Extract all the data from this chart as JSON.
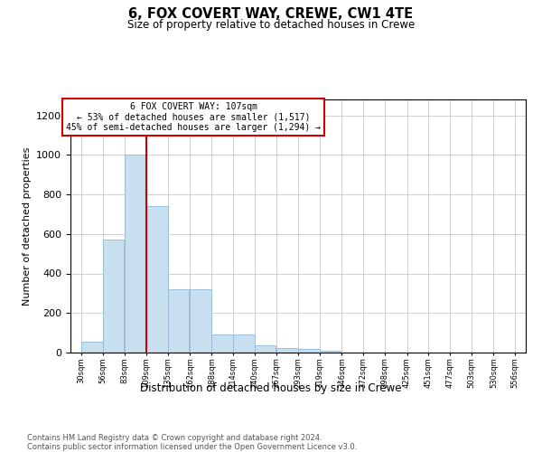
{
  "title": "6, FOX COVERT WAY, CREWE, CW1 4TE",
  "subtitle": "Size of property relative to detached houses in Crewe",
  "xlabel": "Distribution of detached houses by size in Crewe",
  "ylabel": "Number of detached properties",
  "bar_color": "#c8dff0",
  "bar_edge_color": "#90b8d8",
  "vline_color": "#cc0000",
  "annot_box_color": "#cc0000",
  "annot_line1": "6 FOX COVERT WAY: 107sqm",
  "annot_line2": "← 53% of detached houses are smaller (1,517)",
  "annot_line3": "45% of semi-detached houses are larger (1,294) →",
  "bins": [
    30,
    56,
    83,
    109,
    135,
    162,
    188,
    214,
    240,
    267,
    293,
    319,
    346,
    372,
    398,
    425,
    451,
    477,
    503,
    530,
    556
  ],
  "bin_labels": [
    "30sqm",
    "56sqm",
    "83sqm",
    "109sqm",
    "135sqm",
    "162sqm",
    "188sqm",
    "214sqm",
    "240sqm",
    "267sqm",
    "293sqm",
    "319sqm",
    "346sqm",
    "372sqm",
    "398sqm",
    "425sqm",
    "451sqm",
    "477sqm",
    "503sqm",
    "530sqm",
    "556sqm"
  ],
  "counts": [
    57,
    570,
    1000,
    740,
    320,
    320,
    90,
    90,
    38,
    22,
    18,
    10,
    0,
    0,
    0,
    0,
    0,
    0,
    0,
    0
  ],
  "ylim": [
    0,
    1280
  ],
  "yticks": [
    0,
    200,
    400,
    600,
    800,
    1000,
    1200
  ],
  "vline_x": 109,
  "background_color": "#ffffff",
  "grid_color": "#c8c8d0",
  "footer_text": "Contains HM Land Registry data © Crown copyright and database right 2024.\nContains public sector information licensed under the Open Government Licence v3.0."
}
